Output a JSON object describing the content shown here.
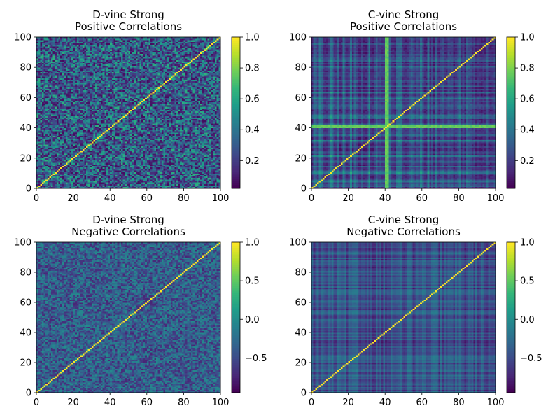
{
  "chart_data": [
    {
      "type": "heatmap",
      "title_line1": "D-vine Strong",
      "title_line2": "Positive Correlations",
      "structure": "dvine",
      "n": 100,
      "xlim": [
        0,
        100
      ],
      "ylim": [
        0,
        100
      ],
      "xticks": [
        "0",
        "20",
        "40",
        "60",
        "80",
        "100"
      ],
      "yticks": [
        "0",
        "20",
        "40",
        "60",
        "80",
        "100"
      ],
      "colorbar": {
        "min": 0.02,
        "max": 1.0,
        "ticks": [
          "0.2",
          "0.4",
          "0.6",
          "0.8",
          "1.0"
        ]
      },
      "diagonal_value": 1.0,
      "colormap": "viridis"
    },
    {
      "type": "heatmap",
      "title_line1": "C-vine Strong",
      "title_line2": "Positive Correlations",
      "structure": "cvine",
      "n": 100,
      "xlim": [
        0,
        100
      ],
      "ylim": [
        0,
        100
      ],
      "xticks": [
        "0",
        "20",
        "40",
        "60",
        "80",
        "100"
      ],
      "yticks": [
        "0",
        "20",
        "40",
        "60",
        "80",
        "100"
      ],
      "colorbar": {
        "min": 0.02,
        "max": 1.0,
        "ticks": [
          "0.2",
          "0.4",
          "0.6",
          "0.8",
          "1.0"
        ]
      },
      "diagonal_value": 1.0,
      "colormap": "viridis"
    },
    {
      "type": "heatmap",
      "title_line1": "D-vine Strong",
      "title_line2": "Negative Correlations",
      "structure": "dvine",
      "n": 100,
      "xlim": [
        0,
        100
      ],
      "ylim": [
        0,
        100
      ],
      "xticks": [
        "0",
        "20",
        "40",
        "60",
        "80",
        "100"
      ],
      "yticks": [
        "0",
        "20",
        "40",
        "60",
        "80",
        "100"
      ],
      "colorbar": {
        "min": -0.95,
        "max": 1.0,
        "ticks": [
          "−0.5",
          "0.0",
          "0.5",
          "1.0"
        ]
      },
      "diagonal_value": 1.0,
      "colormap": "viridis"
    },
    {
      "type": "heatmap",
      "title_line1": "C-vine Strong",
      "title_line2": "Negative Correlations",
      "structure": "cvine",
      "n": 100,
      "xlim": [
        0,
        100
      ],
      "ylim": [
        0,
        100
      ],
      "xticks": [
        "0",
        "20",
        "40",
        "60",
        "80",
        "100"
      ],
      "yticks": [
        "0",
        "20",
        "40",
        "60",
        "80",
        "100"
      ],
      "colorbar": {
        "min": -0.95,
        "max": 1.0,
        "ticks": [
          "−0.5",
          "0.0",
          "0.5",
          "1.0"
        ]
      },
      "diagonal_value": 1.0,
      "colormap": "viridis"
    }
  ]
}
